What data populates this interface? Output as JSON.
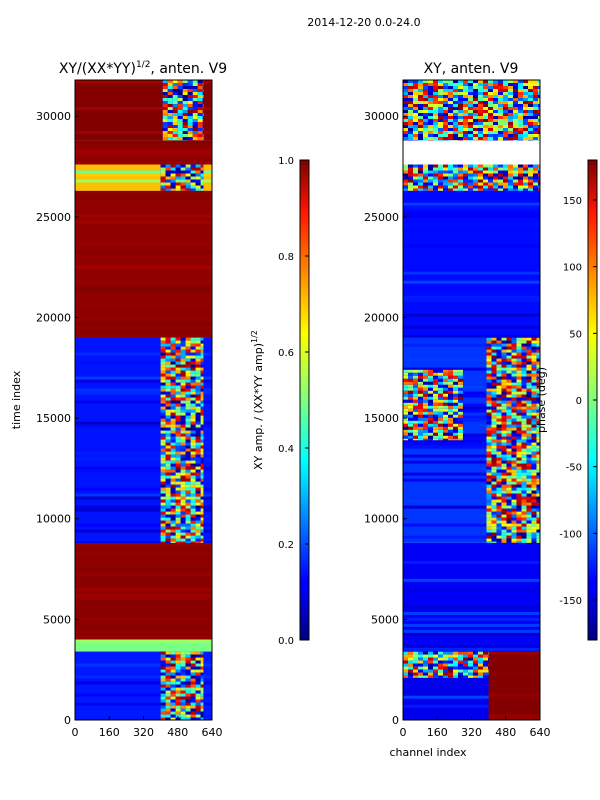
{
  "figure": {
    "suptitle": "2014-12-20 0.0-24.0"
  },
  "chart_data": [
    {
      "type": "heatmap",
      "title": "XY/(XX*YY)",
      "title_exponent": "1/2",
      "title_suffix": ", anten. V9",
      "xlabel": "",
      "ylabel": "time index",
      "xlim": [
        0,
        640
      ],
      "ylim": [
        0,
        31800
      ],
      "xticks": [
        "0",
        "160",
        "320",
        "480",
        "640"
      ],
      "yticks": [
        "0",
        "5000",
        "10000",
        "15000",
        "20000",
        "25000",
        "30000"
      ],
      "colorbar": {
        "label": "XY amp. / (XX*YY amp)",
        "label_exponent": "1/2",
        "range": [
          0.0,
          1.0
        ],
        "ticks": [
          "0.0",
          "0.2",
          "0.4",
          "0.6",
          "0.8",
          "1.0"
        ]
      },
      "regions": [
        {
          "t_from": 0,
          "t_to": 3400,
          "ch_from": 0,
          "ch_to": 640,
          "level": "low"
        },
        {
          "t_from": 3400,
          "t_to": 4000,
          "ch_from": 0,
          "ch_to": 640,
          "level": "mid"
        },
        {
          "t_from": 4000,
          "t_to": 8800,
          "ch_from": 0,
          "ch_to": 640,
          "level": "high"
        },
        {
          "t_from": 8800,
          "t_to": 19000,
          "ch_from": 0,
          "ch_to": 640,
          "level": "low"
        },
        {
          "t_from": 19000,
          "t_to": 26300,
          "ch_from": 0,
          "ch_to": 640,
          "level": "high"
        },
        {
          "t_from": 26300,
          "t_to": 27600,
          "ch_from": 0,
          "ch_to": 640,
          "level": "mid"
        },
        {
          "t_from": 27600,
          "t_to": 28800,
          "ch_from": 0,
          "ch_to": 640,
          "level": "high"
        },
        {
          "t_from": 28800,
          "t_to": 31800,
          "ch_from": 0,
          "ch_to": 640,
          "level": "high"
        },
        {
          "t_from": 0,
          "t_to": 3400,
          "ch_from": 400,
          "ch_to": 600,
          "level": "mixed"
        },
        {
          "t_from": 8800,
          "t_to": 19000,
          "ch_from": 400,
          "ch_to": 600,
          "level": "mixed"
        },
        {
          "t_from": 26300,
          "t_to": 27600,
          "ch_from": 400,
          "ch_to": 600,
          "level": "mixed"
        },
        {
          "t_from": 28800,
          "t_to": 31800,
          "ch_from": 410,
          "ch_to": 600,
          "level": "mixed"
        }
      ]
    },
    {
      "type": "heatmap",
      "title": "XY, anten. V9",
      "xlabel": "channel index",
      "ylabel": "",
      "xlim": [
        0,
        640
      ],
      "ylim": [
        0,
        31800
      ],
      "xticks": [
        "0",
        "160",
        "320",
        "480",
        "640"
      ],
      "yticks": [
        "0",
        "5000",
        "10000",
        "15000",
        "20000",
        "25000",
        "30000"
      ],
      "colorbar": {
        "label": "phase (deg)",
        "range": [
          -180,
          180
        ],
        "ticks": [
          "-150",
          "-100",
          "-50",
          "0",
          "50",
          "100",
          "150"
        ]
      },
      "regions": [
        {
          "t_from": 0,
          "t_to": 2100,
          "ch_from": 0,
          "ch_to": 640,
          "level": "low"
        },
        {
          "t_from": 2100,
          "t_to": 3400,
          "ch_from": 0,
          "ch_to": 640,
          "level": "mixed"
        },
        {
          "t_from": 3400,
          "t_to": 8800,
          "ch_from": 0,
          "ch_to": 640,
          "level": "low"
        },
        {
          "t_from": 8800,
          "t_to": 19000,
          "ch_from": 0,
          "ch_to": 640,
          "level": "low"
        },
        {
          "t_from": 13900,
          "t_to": 17400,
          "ch_from": 0,
          "ch_to": 280,
          "level": "mixed"
        },
        {
          "t_from": 8800,
          "t_to": 19000,
          "ch_from": 390,
          "ch_to": 640,
          "level": "mixed"
        },
        {
          "t_from": 19000,
          "t_to": 26300,
          "ch_from": 0,
          "ch_to": 640,
          "level": "low"
        },
        {
          "t_from": 26300,
          "t_to": 27600,
          "ch_from": 0,
          "ch_to": 640,
          "level": "mixed"
        },
        {
          "t_from": 28800,
          "t_to": 31800,
          "ch_from": 0,
          "ch_to": 640,
          "level": "mixed"
        },
        {
          "t_from": 0,
          "t_to": 3400,
          "ch_from": 400,
          "ch_to": 640,
          "level": "high"
        }
      ]
    }
  ]
}
